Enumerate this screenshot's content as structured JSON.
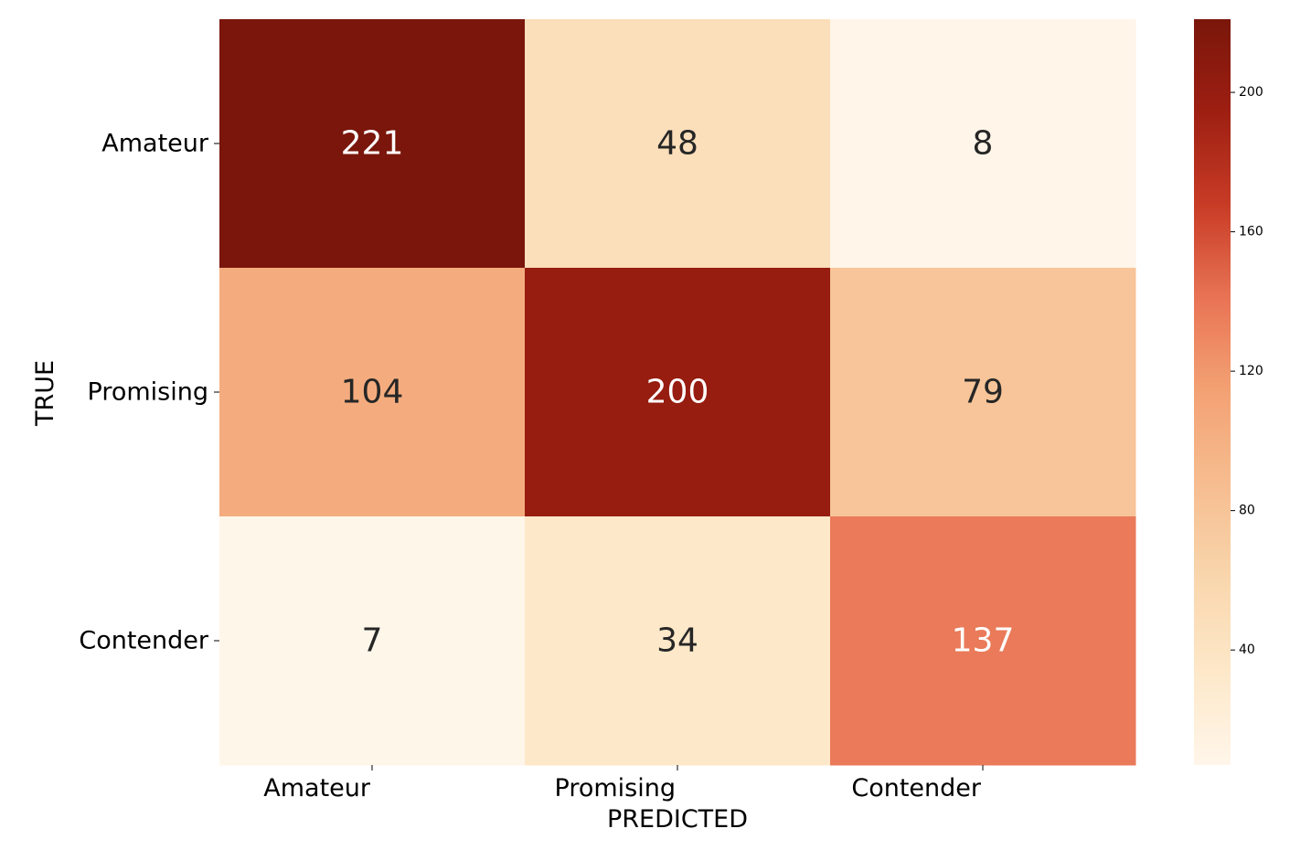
{
  "chart_data": {
    "type": "heatmap",
    "x_categories": [
      "Amateur",
      "Promising",
      "Contender"
    ],
    "y_categories": [
      "Amateur",
      "Promising",
      "Contender"
    ],
    "values": [
      [
        221,
        48,
        8
      ],
      [
        104,
        200,
        79
      ],
      [
        7,
        34,
        137
      ]
    ],
    "xlabel": "PREDICTED",
    "ylabel": "TRUE",
    "colormap": "OrRd",
    "colorbar": {
      "range": [
        7,
        221
      ],
      "ticks": [
        40,
        80,
        120,
        160,
        200
      ]
    },
    "annotation_colors": {
      "light": "#ffffff",
      "dark": "#262626"
    }
  }
}
